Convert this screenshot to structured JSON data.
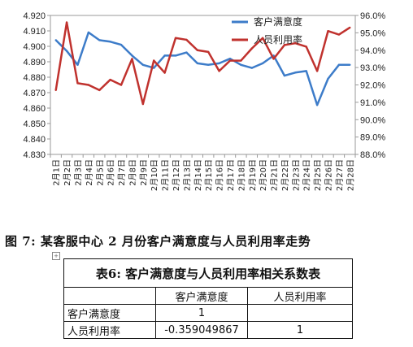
{
  "chart_data": {
    "type": "line",
    "categories": [
      "2月1日",
      "2月2日",
      "2月3日",
      "2月4日",
      "2月5日",
      "2月6日",
      "2月7日",
      "2月8日",
      "2月9日",
      "2月10日",
      "2月11日",
      "2月12日",
      "2月13日",
      "2月14日",
      "2月15日",
      "2月16日",
      "2月17日",
      "2月18日",
      "2月19日",
      "2月20日",
      "2月21日",
      "2月22日",
      "2月23日",
      "2月24日",
      "2月25日",
      "2月26日",
      "2月27日",
      "2月28日"
    ],
    "y_left": {
      "min": 4.83,
      "max": 4.92,
      "ticks": [
        "4.830",
        "4.840",
        "4.850",
        "4.860",
        "4.870",
        "4.880",
        "4.890",
        "4.900",
        "4.910",
        "4.920"
      ]
    },
    "y_right": {
      "min": 88.0,
      "max": 96.0,
      "ticks": [
        "88.0%",
        "89.0%",
        "90.0%",
        "91.0%",
        "92.0%",
        "93.0%",
        "94.0%",
        "95.0%",
        "96.0%"
      ]
    },
    "series": [
      {
        "name": "客户满意度",
        "axis": "left",
        "color": "#3d7cc9",
        "values": [
          4.904,
          4.897,
          4.888,
          4.909,
          4.904,
          4.903,
          4.901,
          4.894,
          4.888,
          4.886,
          4.894,
          4.894,
          4.896,
          4.889,
          4.888,
          4.889,
          4.892,
          4.888,
          4.886,
          4.889,
          4.894,
          4.881,
          4.883,
          4.884,
          4.862,
          4.879,
          4.888,
          4.888
        ]
      },
      {
        "name": "人员利用率",
        "axis": "right",
        "color": "#c0322e",
        "values": [
          91.7,
          95.6,
          92.1,
          92.0,
          91.7,
          92.3,
          92.0,
          93.5,
          90.9,
          93.4,
          92.7,
          94.7,
          94.6,
          94.0,
          93.9,
          92.8,
          93.4,
          93.4,
          94.1,
          94.7,
          93.5,
          94.3,
          94.4,
          94.2,
          92.8,
          95.1,
          94.9,
          95.3
        ]
      }
    ],
    "legend_position": "top-right",
    "grid": false
  },
  "caption": "图 7: 某客服中心 2 月份客户满意度与人员利用率走势",
  "table": {
    "title": "表6: 客户满意度与人员利用率相关系数表",
    "header": [
      "",
      "客户满意度",
      "人员利用率"
    ],
    "rows": [
      {
        "label": "客户满意度",
        "c1": "1",
        "c2": ""
      },
      {
        "label": "人员利用率",
        "c1": "-0.359049867",
        "c2": "1"
      }
    ]
  }
}
